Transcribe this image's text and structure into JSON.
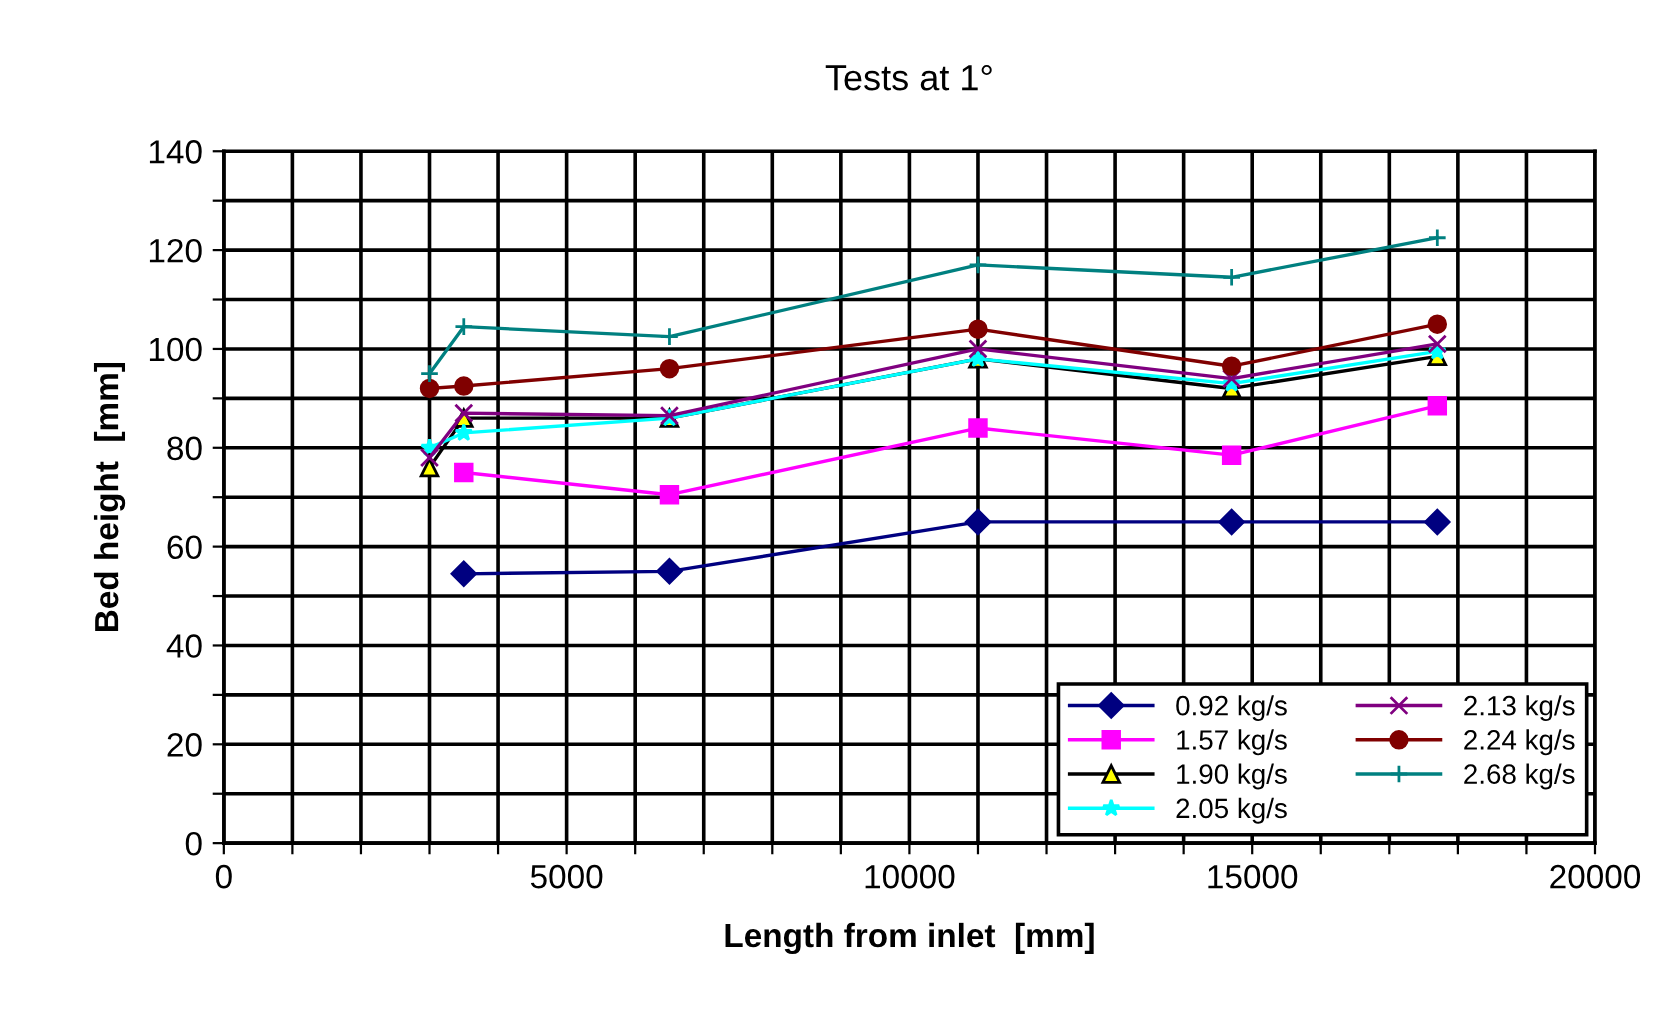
{
  "chart_data": {
    "type": "line",
    "title": "Tests at 1°",
    "xlabel": "Length from inlet  [mm]",
    "ylabel": "Bed height  [mm]",
    "xlim": [
      0,
      20000
    ],
    "xticks": [
      0,
      {
        "value": 1000,
        "label": null
      },
      {
        "value": 2000,
        "label": null
      },
      {
        "value": 3000,
        "label": null
      },
      {
        "value": 4000,
        "label": null
      },
      5000,
      {
        "value": 6000,
        "label": null
      },
      {
        "value": 7000,
        "label": null
      },
      {
        "value": 8000,
        "label": null
      },
      {
        "value": 9000,
        "label": null
      },
      10000,
      {
        "value": 11000,
        "label": null
      },
      {
        "value": 12000,
        "label": null
      },
      {
        "value": 13000,
        "label": null
      },
      {
        "value": 14000,
        "label": null
      },
      15000,
      {
        "value": 16000,
        "label": null
      },
      {
        "value": 17000,
        "label": null
      },
      {
        "value": 18000,
        "label": null
      },
      {
        "value": 19000,
        "label": null
      },
      20000
    ],
    "ylim": [
      0,
      140
    ],
    "yticks": [
      0,
      {
        "value": 10,
        "label": null
      },
      20,
      {
        "value": 30,
        "label": null
      },
      40,
      {
        "value": 50,
        "label": null
      },
      60,
      {
        "value": 70,
        "label": null
      },
      80,
      {
        "value": 90,
        "label": null
      },
      100,
      {
        "value": 110,
        "label": null
      },
      120,
      {
        "value": 130,
        "label": null
      },
      140
    ],
    "grid": true,
    "legend": "bottom right",
    "series": [
      {
        "name": "0.92 kg/s",
        "color": "#000080",
        "marker": "diamond",
        "x": [
          3500,
          6500,
          11000,
          14700,
          17700
        ],
        "values": [
          54.5,
          55,
          65,
          65,
          65
        ]
      },
      {
        "name": "1.57 kg/s",
        "color": "#ff00ff",
        "marker": "square",
        "x": [
          3500,
          6500,
          11000,
          14700,
          17700
        ],
        "values": [
          75,
          70.5,
          84,
          78.5,
          88.5
        ]
      },
      {
        "name": "1.90 kg/s",
        "color": "#000000",
        "marker": "triangle",
        "x": [
          3000,
          3500,
          6500,
          11000,
          14700,
          17700
        ],
        "values": [
          76,
          86,
          86,
          98,
          92,
          98.5
        ]
      },
      {
        "name": "2.05 kg/s",
        "color": "#00ffff",
        "marker": "star",
        "x": [
          3000,
          3500,
          6500,
          11000,
          14700,
          17700
        ],
        "values": [
          80,
          83,
          86,
          98,
          93,
          99.5
        ]
      },
      {
        "name": "2.13 kg/s",
        "color": "#800080",
        "marker": "cross",
        "x": [
          3000,
          3500,
          6500,
          11000,
          14700,
          17700
        ],
        "values": [
          78,
          87,
          86.5,
          100,
          94,
          101
        ]
      },
      {
        "name": "2.24 kg/s",
        "color": "#800000",
        "marker": "circle",
        "x": [
          3000,
          3500,
          6500,
          11000,
          14700,
          17700
        ],
        "values": [
          92,
          92.5,
          96,
          104,
          96.5,
          105
        ]
      },
      {
        "name": "2.68 kg/s",
        "color": "#008080",
        "marker": "plus",
        "x": [
          3000,
          3500,
          6500,
          11000,
          14700,
          17700
        ],
        "values": [
          95,
          104.5,
          102.5,
          117,
          114.5,
          122.5
        ]
      }
    ]
  }
}
